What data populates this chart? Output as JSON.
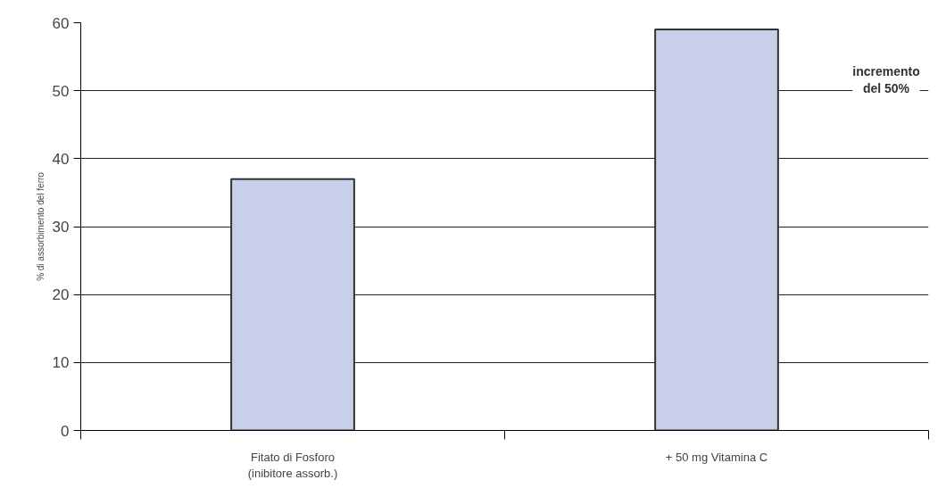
{
  "chart_data": {
    "type": "bar",
    "ylabel": "% di assorbimento del ferro",
    "categories": [
      "Fitato di Fosforo\n(inibitore assorb.)",
      "+ 50 mg Vitamina C"
    ],
    "values": [
      37,
      59
    ],
    "color": "#c7cfe9",
    "ylim": [
      0,
      60
    ],
    "yticks": [
      0,
      10,
      20,
      30,
      40,
      50,
      60
    ],
    "grid": "y",
    "annotations": [
      "incremento\ndel 50%"
    ]
  }
}
